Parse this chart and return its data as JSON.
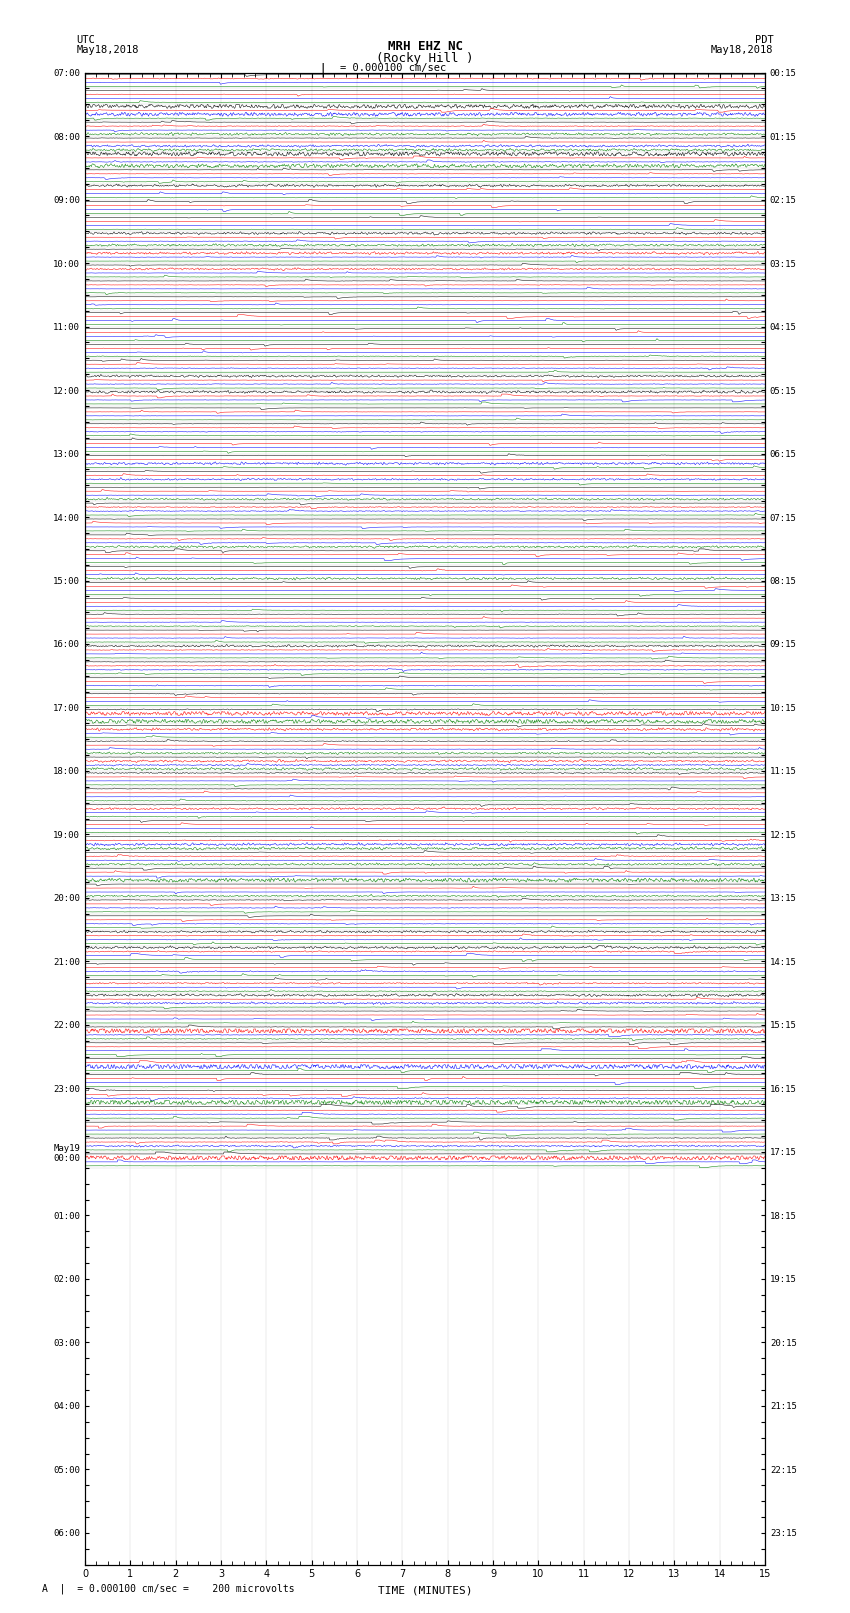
{
  "title_line1": "MRH EHZ NC",
  "title_line2": "(Rocky Hill )",
  "scale_label": "= 0.000100 cm/sec",
  "bottom_label": "= 0.000100 cm/sec =    200 microvolts",
  "xlabel": "TIME (MINUTES)",
  "utc_times": [
    "07:00",
    "",
    "",
    "",
    "08:00",
    "",
    "",
    "",
    "09:00",
    "",
    "",
    "",
    "10:00",
    "",
    "",
    "",
    "11:00",
    "",
    "",
    "",
    "12:00",
    "",
    "",
    "",
    "13:00",
    "",
    "",
    "",
    "14:00",
    "",
    "",
    "",
    "15:00",
    "",
    "",
    "",
    "16:00",
    "",
    "",
    "",
    "17:00",
    "",
    "",
    "",
    "18:00",
    "",
    "",
    "",
    "19:00",
    "",
    "",
    "",
    "20:00",
    "",
    "",
    "",
    "21:00",
    "",
    "",
    "",
    "22:00",
    "",
    "",
    "",
    "23:00",
    "",
    "",
    "",
    "May19\n00:00",
    "",
    "",
    "",
    "01:00",
    "",
    "",
    "",
    "02:00",
    "",
    "",
    "",
    "03:00",
    "",
    "",
    "",
    "04:00",
    "",
    "",
    "",
    "05:00",
    "",
    "",
    "",
    "06:00",
    "",
    ""
  ],
  "pdt_times": [
    "00:15",
    "",
    "",
    "",
    "01:15",
    "",
    "",
    "",
    "02:15",
    "",
    "",
    "",
    "03:15",
    "",
    "",
    "",
    "04:15",
    "",
    "",
    "",
    "05:15",
    "",
    "",
    "",
    "06:15",
    "",
    "",
    "",
    "07:15",
    "",
    "",
    "",
    "08:15",
    "",
    "",
    "",
    "09:15",
    "",
    "",
    "",
    "10:15",
    "",
    "",
    "",
    "11:15",
    "",
    "",
    "",
    "12:15",
    "",
    "",
    "",
    "13:15",
    "",
    "",
    "",
    "14:15",
    "",
    "",
    "",
    "15:15",
    "",
    "",
    "",
    "16:15",
    "",
    "",
    "",
    "17:15",
    "",
    "",
    "",
    "18:15",
    "",
    "",
    "",
    "19:15",
    "",
    "",
    "",
    "20:15",
    "",
    "",
    "",
    "21:15",
    "",
    "",
    "",
    "22:15",
    "",
    "",
    "",
    "23:15",
    "",
    ""
  ],
  "n_rows": 69,
  "traces_per_row": 4,
  "colors": [
    "black",
    "red",
    "blue",
    "green"
  ],
  "bg_color": "white",
  "fig_width": 8.5,
  "fig_height": 16.13,
  "x_min": 0,
  "x_max": 15,
  "x_ticks": [
    0,
    1,
    2,
    3,
    4,
    5,
    6,
    7,
    8,
    9,
    10,
    11,
    12,
    13,
    14,
    15
  ],
  "amplitude_scale": 0.35,
  "noise_base": 0.08,
  "seed": 42,
  "n_points": 1500
}
